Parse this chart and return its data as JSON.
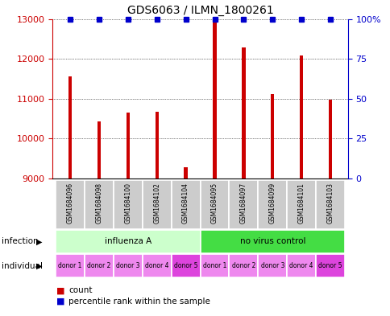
{
  "title": "GDS6063 / ILMN_1800261",
  "samples": [
    "GSM1684096",
    "GSM1684098",
    "GSM1684100",
    "GSM1684102",
    "GSM1684104",
    "GSM1684095",
    "GSM1684097",
    "GSM1684099",
    "GSM1684101",
    "GSM1684103"
  ],
  "counts": [
    11570,
    10430,
    10650,
    10680,
    9290,
    12960,
    12280,
    11120,
    12080,
    10980
  ],
  "percentiles": [
    100,
    100,
    100,
    100,
    100,
    100,
    100,
    100,
    100,
    100
  ],
  "ymin": 9000,
  "ymax": 13000,
  "yticks": [
    9000,
    10000,
    11000,
    12000,
    13000
  ],
  "right_yticks": [
    0,
    25,
    50,
    75,
    100
  ],
  "infection_groups": [
    {
      "label": "influenza A",
      "start": 0,
      "end": 5,
      "color": "#ccffcc"
    },
    {
      "label": "no virus control",
      "start": 5,
      "end": 10,
      "color": "#44dd44"
    }
  ],
  "individual_labels": [
    "donor 1",
    "donor 2",
    "donor 3",
    "donor 4",
    "donor 5",
    "donor 1",
    "donor 2",
    "donor 3",
    "donor 4",
    "donor 5"
  ],
  "individual_colors": [
    "#ee88ee",
    "#ee88ee",
    "#ee88ee",
    "#ee88ee",
    "#dd44dd",
    "#ee88ee",
    "#ee88ee",
    "#ee88ee",
    "#ee88ee",
    "#dd44dd"
  ],
  "bar_color": "#cc0000",
  "dot_color": "#0000cc",
  "tick_color_left": "#cc0000",
  "tick_color_right": "#0000cc",
  "sample_box_color": "#cccccc",
  "legend_count_color": "#cc0000",
  "legend_pct_color": "#0000cc",
  "bar_width": 0.12
}
